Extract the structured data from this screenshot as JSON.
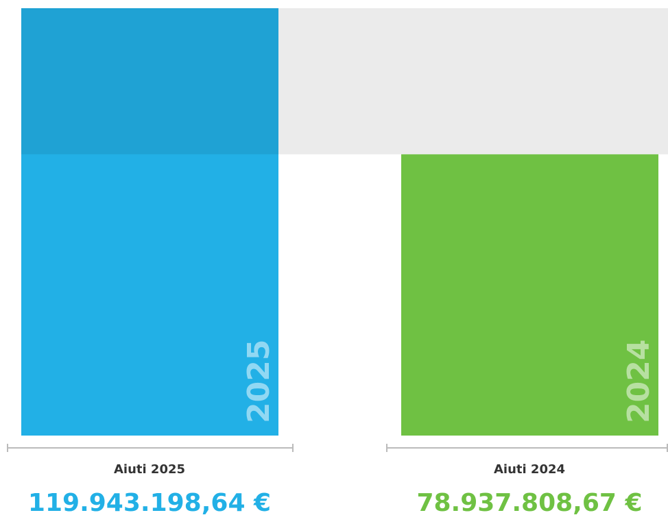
{
  "chart_data": {
    "type": "bar",
    "categories": [
      "2025",
      "2024"
    ],
    "captions": [
      "Aiuti 2025",
      "Aiuti 2024"
    ],
    "values": [
      119943198.64,
      78937808.67
    ],
    "value_labels": [
      "119.943.198,64 €",
      "78.937.808,67 €"
    ],
    "colors": [
      "#22b0e6",
      "#6fc143"
    ]
  }
}
